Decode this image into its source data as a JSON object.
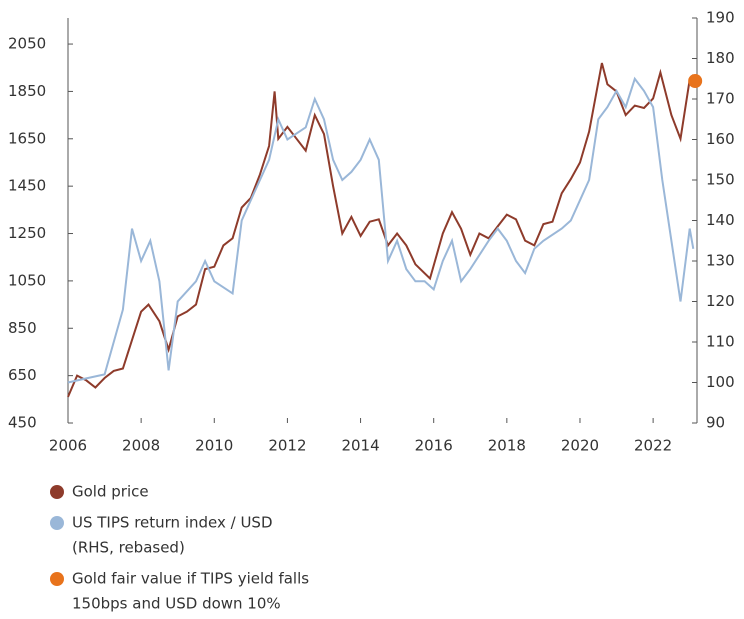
{
  "chart_data": {
    "type": "line",
    "xlim": [
      2006,
      2023.2
    ],
    "xticks": [
      2006,
      2008,
      2010,
      2012,
      2014,
      2016,
      2018,
      2020,
      2022
    ],
    "ylim": [
      450,
      2160
    ],
    "yticks": [
      450,
      650,
      850,
      1050,
      1250,
      1450,
      1650,
      1850,
      2050
    ],
    "y2lim": [
      90,
      190
    ],
    "y2ticks": [
      90,
      100,
      110,
      120,
      130,
      140,
      150,
      160,
      170,
      180,
      190
    ],
    "series": [
      {
        "name": [
          "Gold price"
        ],
        "color": "#8e3b2b",
        "type": "line",
        "x": [
          2006.0,
          2006.25,
          2006.5,
          2006.75,
          2007.0,
          2007.25,
          2007.5,
          2007.75,
          2008.0,
          2008.2,
          2008.5,
          2008.75,
          2009.0,
          2009.25,
          2009.5,
          2009.75,
          2010.0,
          2010.25,
          2010.5,
          2010.75,
          2011.0,
          2011.25,
          2011.5,
          2011.65,
          2011.75,
          2012.0,
          2012.25,
          2012.5,
          2012.75,
          2013.0,
          2013.25,
          2013.5,
          2013.75,
          2014.0,
          2014.25,
          2014.5,
          2014.75,
          2015.0,
          2015.25,
          2015.5,
          2015.9,
          2016.25,
          2016.5,
          2016.75,
          2017.0,
          2017.25,
          2017.5,
          2017.75,
          2018.0,
          2018.25,
          2018.5,
          2018.75,
          2019.0,
          2019.25,
          2019.5,
          2019.75,
          2020.0,
          2020.25,
          2020.6,
          2020.75,
          2021.0,
          2021.25,
          2021.5,
          2021.75,
          2022.0,
          2022.2,
          2022.5,
          2022.75,
          2023.0,
          2023.1
        ],
        "values": [
          560,
          650,
          630,
          600,
          640,
          670,
          680,
          800,
          920,
          950,
          880,
          760,
          900,
          920,
          950,
          1100,
          1110,
          1200,
          1230,
          1360,
          1400,
          1500,
          1620,
          1850,
          1650,
          1700,
          1650,
          1600,
          1750,
          1670,
          1450,
          1250,
          1320,
          1240,
          1300,
          1310,
          1200,
          1250,
          1200,
          1120,
          1060,
          1250,
          1340,
          1270,
          1160,
          1250,
          1230,
          1280,
          1330,
          1310,
          1220,
          1200,
          1290,
          1300,
          1420,
          1480,
          1550,
          1680,
          1970,
          1880,
          1850,
          1750,
          1790,
          1780,
          1820,
          1930,
          1750,
          1650,
          1900,
          1920
        ]
      },
      {
        "name": [
          "US TIPS return index / USD",
          "(RHS, rebased)"
        ],
        "color": "#9ab7d8",
        "type": "line",
        "axis": "y2",
        "x": [
          2006.0,
          2006.5,
          2007.0,
          2007.5,
          2007.75,
          2008.0,
          2008.25,
          2008.5,
          2008.75,
          2009.0,
          2009.5,
          2009.75,
          2010.0,
          2010.5,
          2010.75,
          2011.0,
          2011.5,
          2011.75,
          2012.0,
          2012.5,
          2012.75,
          2013.0,
          2013.25,
          2013.5,
          2013.75,
          2014.0,
          2014.25,
          2014.5,
          2014.75,
          2015.0,
          2015.25,
          2015.5,
          2015.75,
          2016.0,
          2016.25,
          2016.5,
          2016.75,
          2017.0,
          2017.5,
          2017.75,
          2018.0,
          2018.25,
          2018.5,
          2018.75,
          2019.0,
          2019.5,
          2019.75,
          2020.0,
          2020.25,
          2020.5,
          2020.75,
          2021.0,
          2021.25,
          2021.5,
          2021.75,
          2022.0,
          2022.25,
          2022.5,
          2022.75,
          2023.0,
          2023.1
        ],
        "values": [
          100,
          101,
          102,
          118,
          138,
          130,
          135,
          125,
          103,
          120,
          125,
          130,
          125,
          122,
          140,
          145,
          155,
          165,
          160,
          163,
          170,
          165,
          155,
          150,
          152,
          155,
          160,
          155,
          130,
          135,
          128,
          125,
          125,
          123,
          130,
          135,
          125,
          128,
          135,
          138,
          135,
          130,
          127,
          133,
          135,
          138,
          140,
          145,
          150,
          165,
          168,
          172,
          168,
          175,
          172,
          168,
          150,
          135,
          120,
          138,
          133
        ]
      },
      {
        "name": [
          "Gold fair value if TIPS yield falls",
          "150bps and USD down 10%"
        ],
        "color": "#e8731c",
        "type": "scatter",
        "x": [
          2023.15
        ],
        "values": [
          1894
        ]
      }
    ]
  }
}
